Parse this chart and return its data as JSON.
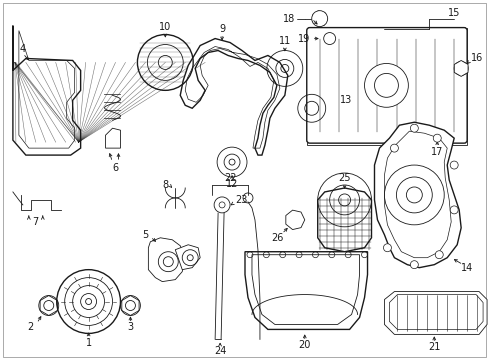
{
  "bg_color": "#ffffff",
  "line_color": "#1a1a1a",
  "figsize": [
    4.89,
    3.6
  ],
  "dpi": 100,
  "border_color": "#aaaaaa"
}
